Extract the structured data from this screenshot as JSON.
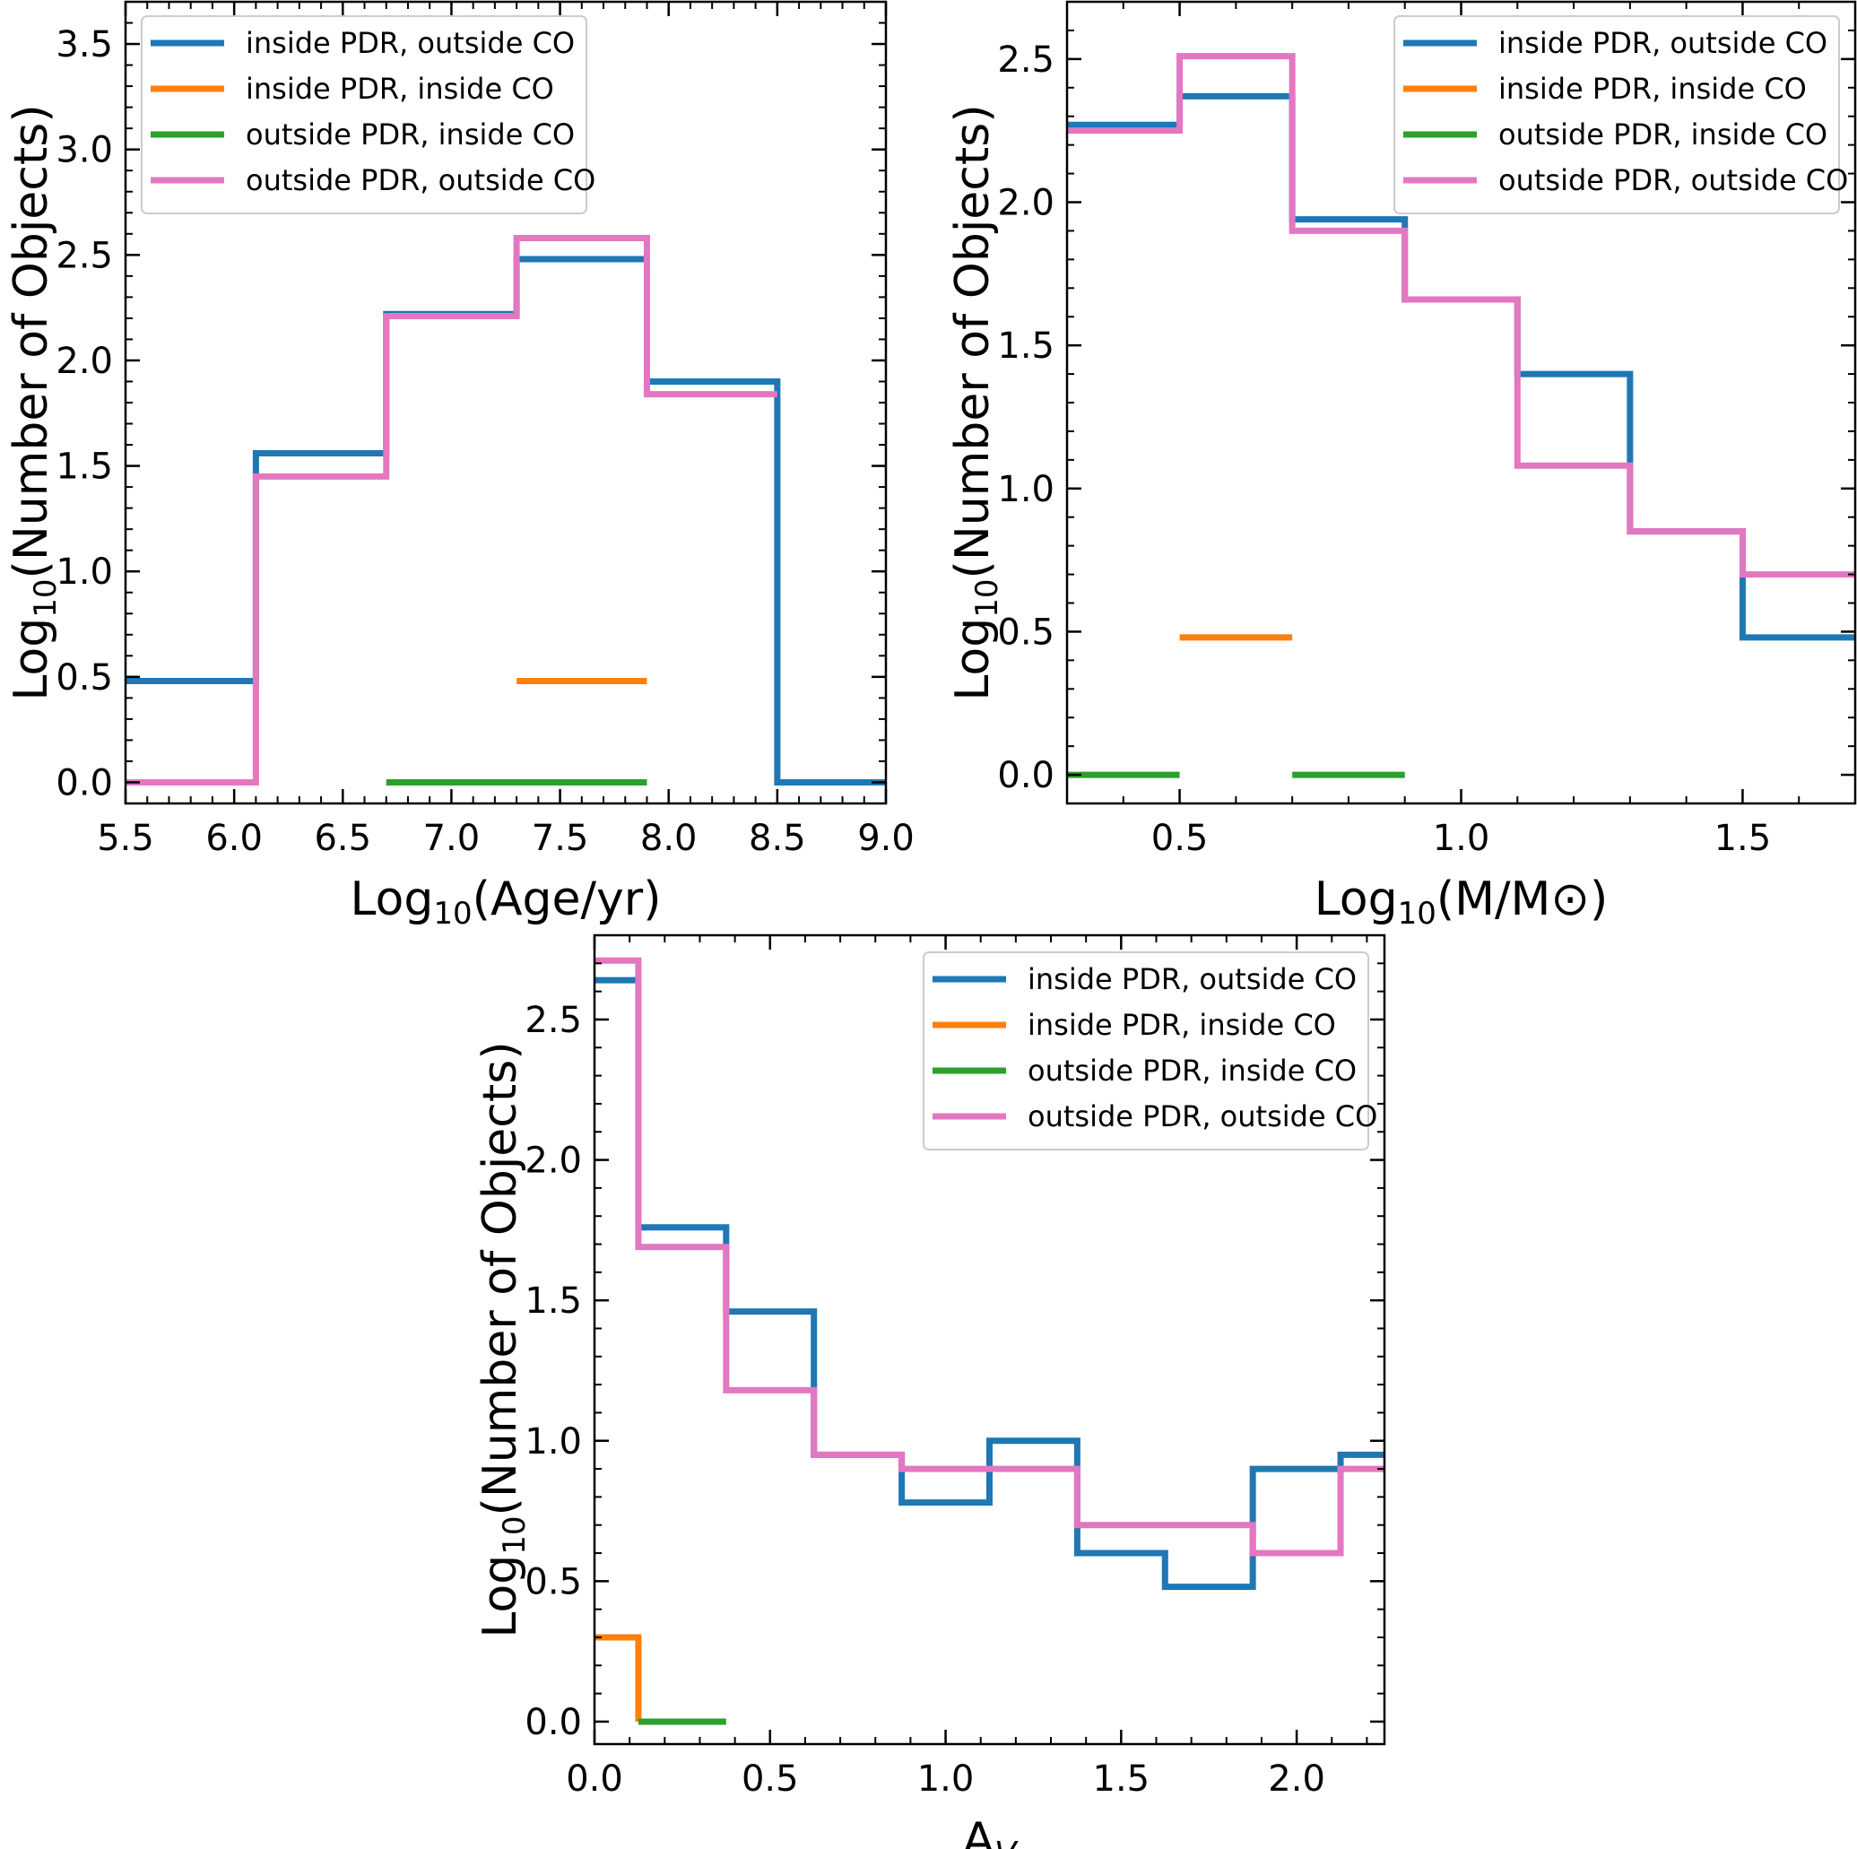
{
  "chart_data": [
    {
      "type": "step-histogram",
      "title": "",
      "xlabel": "Log₁₀(Age/yr)",
      "ylabel": "Log₁₀(Number of Objects)",
      "xlim": [
        5.5,
        9.0
      ],
      "ylim": [
        -0.1,
        3.7
      ],
      "xticks": [
        5.5,
        6.0,
        6.5,
        7.0,
        7.5,
        8.0,
        8.5,
        9.0
      ],
      "xtick_labels": [
        "5.5",
        "6.0",
        "6.5",
        "7.0",
        "7.5",
        "8.0",
        "8.5",
        "9.0"
      ],
      "yticks": [
        0.0,
        0.5,
        1.0,
        1.5,
        2.0,
        2.5,
        3.0,
        3.5
      ],
      "ytick_labels": [
        "0.0",
        "0.5",
        "1.0",
        "1.5",
        "2.0",
        "2.5",
        "3.0",
        "3.5"
      ],
      "legend_position": "top-left",
      "series": [
        {
          "name": "inside PDR, outside CO",
          "color": "#1f77b4",
          "edges": [
            5.5,
            6.1,
            6.7,
            7.3,
            7.9,
            8.5,
            9.0
          ],
          "values": [
            0.48,
            1.56,
            2.22,
            2.48,
            1.9,
            0.0
          ]
        },
        {
          "name": "inside PDR, inside CO",
          "color": "#ff7f0e",
          "edges": [
            7.3,
            7.9
          ],
          "values": [
            0.48
          ]
        },
        {
          "name": "outside PDR, inside CO",
          "color": "#2ca02c",
          "edges": [
            6.7,
            7.3,
            7.9
          ],
          "values": [
            0.0,
            0.0
          ]
        },
        {
          "name": "outside PDR, outside CO",
          "color": "#e377c2",
          "edges": [
            5.5,
            6.1,
            6.7,
            7.3,
            7.9,
            8.5
          ],
          "values": [
            0.0,
            1.45,
            2.21,
            2.58,
            1.84
          ]
        }
      ]
    },
    {
      "type": "step-histogram",
      "title": "",
      "xlabel": "Log₁₀(M/M⊙)",
      "ylabel": "Log₁₀(Number of Objects)",
      "xlim": [
        0.3,
        1.7
      ],
      "ylim": [
        -0.1,
        2.7
      ],
      "xticks": [
        0.5,
        1.0,
        1.5
      ],
      "xtick_labels": [
        "0.5",
        "1.0",
        "1.5"
      ],
      "yticks": [
        0.0,
        0.5,
        1.0,
        1.5,
        2.0,
        2.5
      ],
      "ytick_labels": [
        "0.0",
        "0.5",
        "1.0",
        "1.5",
        "2.0",
        "2.5"
      ],
      "legend_position": "top-right",
      "series": [
        {
          "name": "inside PDR, outside CO",
          "color": "#1f77b4",
          "edges": [
            0.3,
            0.5,
            0.7,
            0.9,
            1.1,
            1.3,
            1.5,
            1.7
          ],
          "values": [
            2.27,
            2.37,
            1.94,
            1.66,
            1.4,
            0.85,
            0.48
          ]
        },
        {
          "name": "inside PDR, inside CO",
          "color": "#ff7f0e",
          "edges": [
            0.5,
            0.7
          ],
          "values": [
            0.48
          ]
        },
        {
          "name": "outside PDR, inside CO",
          "color": "#2ca02c",
          "segments": [
            [
              0.3,
              0.5,
              0.0
            ],
            [
              0.7,
              0.9,
              0.0
            ]
          ]
        },
        {
          "name": "outside PDR, outside CO",
          "color": "#e377c2",
          "edges": [
            0.3,
            0.5,
            0.7,
            0.9,
            1.1,
            1.3,
            1.5,
            1.7
          ],
          "values": [
            2.25,
            2.51,
            1.9,
            1.66,
            1.08,
            0.85,
            0.7
          ]
        }
      ]
    },
    {
      "type": "step-histogram",
      "title": "",
      "xlabel": "A_V",
      "ylabel": "Log₁₀(Number of Objects)",
      "xlim": [
        0.0,
        2.25
      ],
      "ylim": [
        -0.08,
        2.8
      ],
      "xticks": [
        0.0,
        0.5,
        1.0,
        1.5,
        2.0
      ],
      "xtick_labels": [
        "0.0",
        "0.5",
        "1.0",
        "1.5",
        "2.0"
      ],
      "yticks": [
        0.0,
        0.5,
        1.0,
        1.5,
        2.0,
        2.5
      ],
      "ytick_labels": [
        "0.0",
        "0.5",
        "1.0",
        "1.5",
        "2.0",
        "2.5"
      ],
      "legend_position": "top-right",
      "series": [
        {
          "name": "inside PDR, outside CO",
          "color": "#1f77b4",
          "edges": [
            0.0,
            0.125,
            0.375,
            0.625,
            0.875,
            1.125,
            1.375,
            1.625,
            1.875,
            2.125,
            2.25
          ],
          "values": [
            2.64,
            1.76,
            1.46,
            0.95,
            0.78,
            1.0,
            0.6,
            0.48,
            0.9,
            0.95
          ]
        },
        {
          "name": "inside PDR, inside CO",
          "color": "#ff7f0e",
          "edges": [
            0.0,
            0.125
          ],
          "values": [
            0.3
          ],
          "drop_to": 0.0
        },
        {
          "name": "outside PDR, inside CO",
          "color": "#2ca02c",
          "edges": [
            0.125,
            0.375
          ],
          "values": [
            0.0
          ]
        },
        {
          "name": "outside PDR, outside CO",
          "color": "#e377c2",
          "edges": [
            0.0,
            0.125,
            0.375,
            0.625,
            0.875,
            1.125,
            1.375,
            1.625,
            1.875,
            2.125,
            2.25
          ],
          "values": [
            2.71,
            1.69,
            1.18,
            0.95,
            0.9,
            0.9,
            0.7,
            0.7,
            0.6,
            0.9
          ]
        }
      ]
    }
  ]
}
